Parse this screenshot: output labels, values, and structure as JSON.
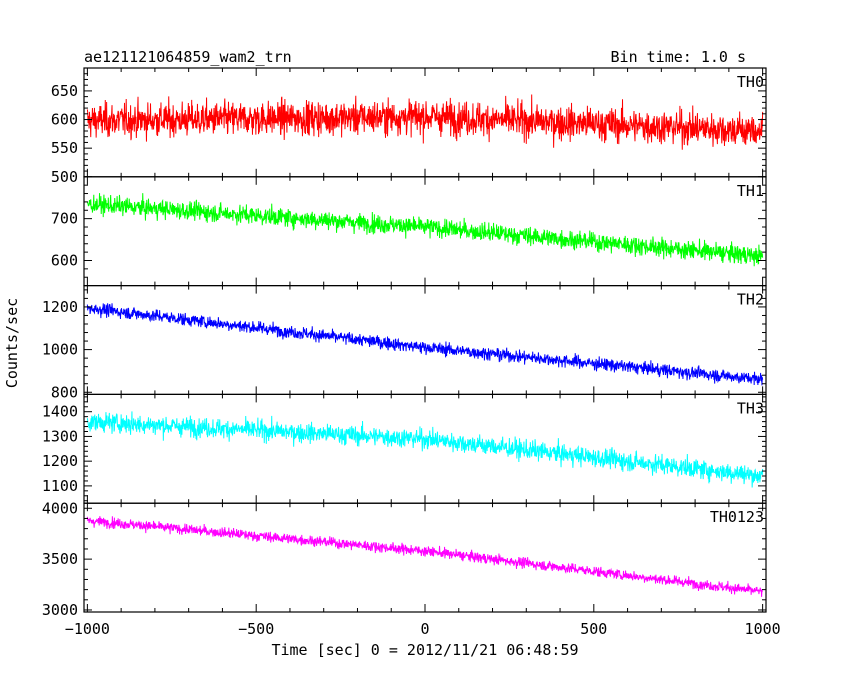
{
  "chart_data": {
    "type": "line",
    "title": "ae121121064859_wam2_trn",
    "subtitle": "Bin time: 1.0 s",
    "xlabel": "Time [sec] 0 = 2012/11/21 06:48:59",
    "ylabel": "Counts/sec",
    "xlim": [
      -1010,
      1010
    ],
    "xticks": [
      -1000,
      -500,
      0,
      500,
      1000
    ],
    "xtick_labels": [
      "−1000",
      "−500",
      "0",
      "500",
      "1000"
    ],
    "grid": false,
    "panels": [
      {
        "name": "TH0",
        "color": "#ff0000",
        "ylim": [
          500,
          690
        ],
        "yticks": [
          500,
          550,
          600,
          650
        ],
        "trend": [
          [
            -1000,
            598
          ],
          [
            0,
            605
          ],
          [
            1000,
            580
          ]
        ],
        "noise": 38
      },
      {
        "name": "TH1",
        "color": "#00ff00",
        "ylim": [
          540,
          800
        ],
        "yticks": [
          600,
          700
        ],
        "trend": [
          [
            -1000,
            735
          ],
          [
            0,
            680
          ],
          [
            1000,
            610
          ]
        ],
        "noise": 28
      },
      {
        "name": "TH2",
        "color": "#0000ff",
        "ylim": [
          790,
          1300
        ],
        "yticks": [
          800,
          1000,
          1200
        ],
        "trend": [
          [
            -1000,
            1195
          ],
          [
            0,
            1010
          ],
          [
            1000,
            860
          ]
        ],
        "noise": 38
      },
      {
        "name": "TH3",
        "color": "#00ffff",
        "ylim": [
          1030,
          1470
        ],
        "yticks": [
          1100,
          1200,
          1300,
          1400
        ],
        "trend": [
          [
            -1000,
            1360
          ],
          [
            0,
            1290
          ],
          [
            1000,
            1140
          ]
        ],
        "noise": 50
      },
      {
        "name": "TH0123",
        "color": "#ff00ff",
        "ylim": [
          2980,
          4050
        ],
        "yticks": [
          3000,
          3500,
          4000
        ],
        "trend": [
          [
            -1000,
            3880
          ],
          [
            0,
            3580
          ],
          [
            1000,
            3180
          ]
        ],
        "noise": 65
      }
    ]
  }
}
